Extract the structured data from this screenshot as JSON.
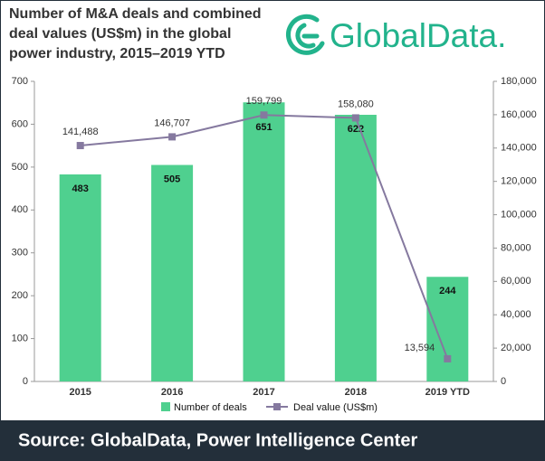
{
  "header": {
    "title_lines": [
      "Number of M&A deals and combined",
      "deal values (US$m) in the global",
      "power industry, 2015–2019 YTD"
    ],
    "logo": "GlobalData."
  },
  "chart_data": {
    "type": "bar",
    "categories": [
      "2015",
      "2016",
      "2017",
      "2018",
      "2019 YTD"
    ],
    "series": [
      {
        "name": "Number of deals",
        "type": "bar",
        "color": "#4fd08f",
        "axis": "y",
        "values": [
          483,
          505,
          651,
          622,
          244
        ]
      },
      {
        "name": "Deal value (US$m)",
        "type": "line",
        "color": "#85799f",
        "axis": "y2",
        "values": [
          141488,
          146707,
          159799,
          158080,
          13594
        ],
        "value_labels": [
          "141,488",
          "146,707",
          "159,799",
          "158,080",
          "13,594"
        ]
      }
    ],
    "ylim": [
      0,
      700
    ],
    "yticks": [
      0,
      100,
      200,
      300,
      400,
      500,
      600,
      700
    ],
    "y2lim": [
      0,
      180000
    ],
    "y2ticks": [
      0,
      {
        "value": 20000,
        "label": "20,000"
      },
      {
        "value": 40000,
        "label": "40,000"
      },
      {
        "value": 60000,
        "label": "60,000"
      },
      {
        "value": 80000,
        "label": "80,000"
      },
      {
        "value": 100000,
        "label": "100,000"
      },
      {
        "value": 120000,
        "label": "120,000"
      },
      {
        "value": 140000,
        "label": "140,000"
      },
      {
        "value": 160000,
        "label": "160,000"
      },
      {
        "value": 180000,
        "label": "180,000"
      }
    ],
    "grid": false
  },
  "footer": {
    "source": "Source: GlobalData, Power Intelligence Center"
  }
}
